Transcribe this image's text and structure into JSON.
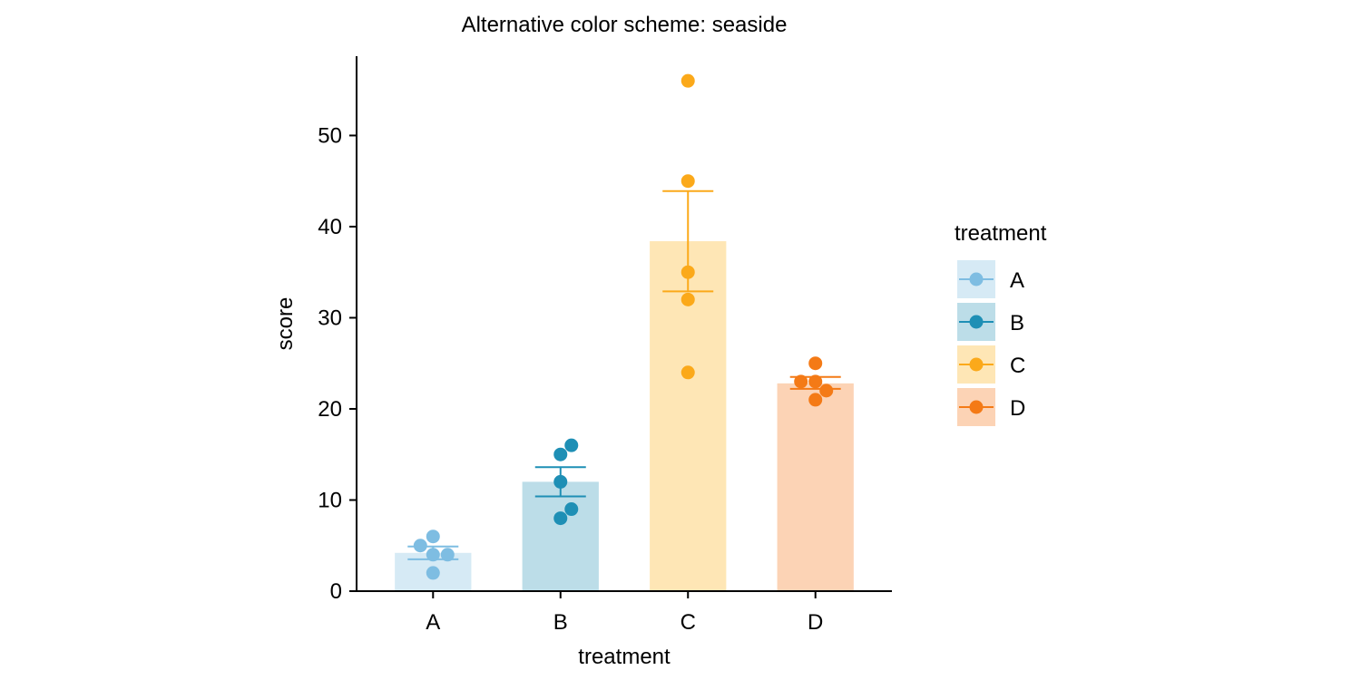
{
  "chart_data": {
    "type": "bar",
    "title": "Alternative color scheme: seaside",
    "xlabel": "treatment",
    "ylabel": "score",
    "ylim": [
      0,
      58.7
    ],
    "yticks": [
      0,
      10,
      20,
      30,
      40,
      50
    ],
    "categories": [
      "A",
      "B",
      "C",
      "D"
    ],
    "bars": [
      {
        "category": "A",
        "mean": 4.2,
        "error_low": 3.5,
        "error_high": 4.9,
        "points": [
          5,
          6,
          4,
          4,
          2
        ],
        "color": "#7ebde2",
        "fill": "#d6eaf5"
      },
      {
        "category": "B",
        "mean": 12.0,
        "error_low": 10.4,
        "error_high": 13.6,
        "points": [
          15,
          16,
          12,
          9,
          8
        ],
        "color": "#1e8fb5",
        "fill": "#bcdde8"
      },
      {
        "category": "C",
        "mean": 38.4,
        "error_low": 32.9,
        "error_high": 43.9,
        "points": [
          56,
          45,
          35,
          32,
          24
        ],
        "color": "#fba91a",
        "fill": "#fee6b5"
      },
      {
        "category": "D",
        "mean": 22.8,
        "error_low": 22.2,
        "error_high": 23.5,
        "points": [
          25,
          23,
          23,
          22,
          21
        ],
        "color": "#f47a16",
        "fill": "#fcd3b5"
      }
    ],
    "legend": {
      "title": "treatment",
      "placement": "right",
      "entries": [
        "A",
        "B",
        "C",
        "D"
      ]
    },
    "grid": false
  }
}
